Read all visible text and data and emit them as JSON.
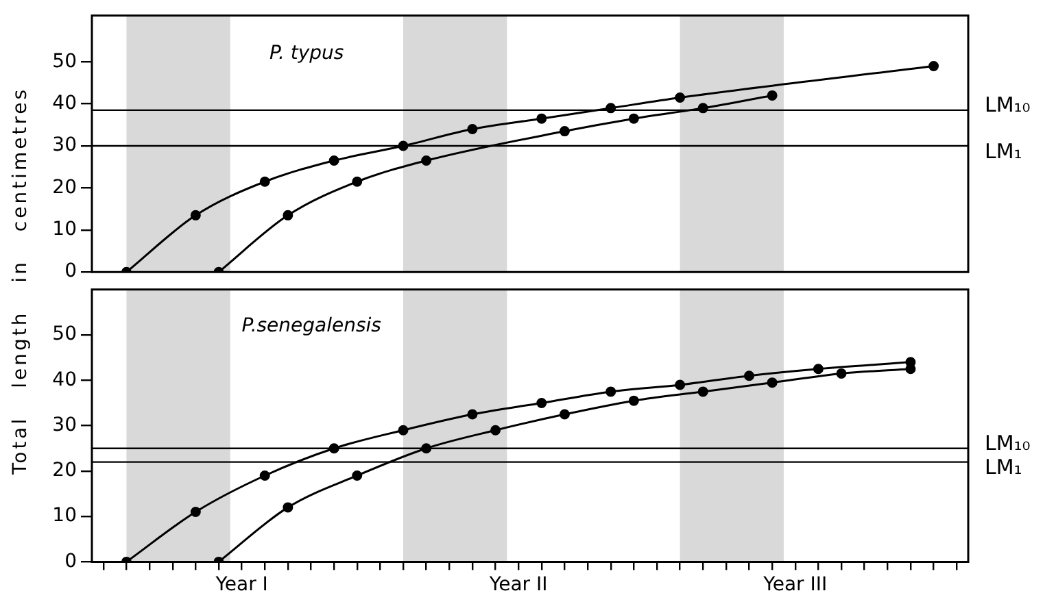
{
  "chart_data": [
    {
      "type": "line",
      "title": "P. typus",
      "ylabel": "Total length in centimetres",
      "ylim": [
        0,
        61
      ],
      "yticks": [
        0,
        10,
        20,
        30,
        40,
        50
      ],
      "tick_labels": "y",
      "grid": false,
      "marker": "circle",
      "line_style": "solid",
      "categories": [
        null,
        null,
        null,
        null,
        null,
        null,
        null,
        null,
        null,
        null,
        null,
        null,
        null,
        null,
        null,
        null,
        null,
        null,
        null,
        null,
        null,
        null,
        null,
        null,
        null,
        null,
        null,
        null,
        null,
        null,
        null,
        null,
        null,
        null,
        null,
        null,
        null,
        null
      ],
      "ref_lines": [
        {
          "axis": "y",
          "value": 38.5,
          "label": "LM₁₀",
          "color": "#000000"
        },
        {
          "axis": "y",
          "value": 30,
          "label": "LM₁",
          "color": "#000000"
        }
      ],
      "series": [
        {
          "color": "#000000",
          "values": [
            null,
            0,
            null,
            null,
            13.5,
            null,
            null,
            21.5,
            null,
            null,
            26.5,
            null,
            null,
            30,
            null,
            null,
            34,
            null,
            null,
            36.5,
            null,
            null,
            39,
            null,
            null,
            41.5,
            null,
            null,
            null,
            null,
            null,
            null,
            null,
            null,
            null,
            null,
            49,
            null
          ]
        },
        {
          "color": "#000000",
          "values": [
            null,
            null,
            null,
            null,
            null,
            0,
            null,
            null,
            13.5,
            null,
            null,
            21.5,
            null,
            null,
            26.5,
            null,
            null,
            null,
            null,
            null,
            33.5,
            null,
            null,
            36.5,
            null,
            null,
            39,
            null,
            null,
            42,
            null,
            null,
            null,
            null,
            null,
            null,
            null,
            null
          ]
        }
      ]
    },
    {
      "type": "line",
      "title": "P.senegalensis",
      "ylim": [
        0,
        60
      ],
      "yticks": [
        0,
        10,
        20,
        30,
        40,
        50
      ],
      "grid": false,
      "marker": "circle",
      "line_style": "solid",
      "categories": [
        null,
        null,
        null,
        null,
        null,
        null,
        "Year I",
        null,
        null,
        null,
        null,
        null,
        null,
        null,
        null,
        null,
        null,
        null,
        "Year II",
        null,
        null,
        null,
        null,
        null,
        null,
        null,
        null,
        null,
        null,
        null,
        "Year III",
        null,
        null,
        null,
        null,
        null,
        null,
        null
      ],
      "ref_lines": [
        {
          "axis": "y",
          "value": 25,
          "label": "LM₁₀",
          "color": "#000000"
        },
        {
          "axis": "y",
          "value": 22,
          "label": "LM₁",
          "color": "#000000"
        }
      ],
      "series": [
        {
          "color": "#000000",
          "values": [
            null,
            0,
            null,
            null,
            11,
            null,
            null,
            19,
            null,
            null,
            25,
            null,
            null,
            29,
            null,
            null,
            32.5,
            null,
            null,
            35,
            null,
            null,
            37.5,
            null,
            null,
            39,
            null,
            null,
            41,
            null,
            null,
            42.5,
            null,
            null,
            null,
            44,
            null,
            null
          ]
        },
        {
          "color": "#000000",
          "values": [
            null,
            null,
            null,
            null,
            null,
            0,
            null,
            null,
            12,
            null,
            null,
            19,
            null,
            null,
            25,
            null,
            null,
            29,
            null,
            null,
            32.5,
            null,
            null,
            35.5,
            null,
            null,
            37.5,
            null,
            null,
            39.5,
            null,
            null,
            41.5,
            null,
            null,
            42.5,
            null,
            null
          ]
        }
      ]
    }
  ]
}
